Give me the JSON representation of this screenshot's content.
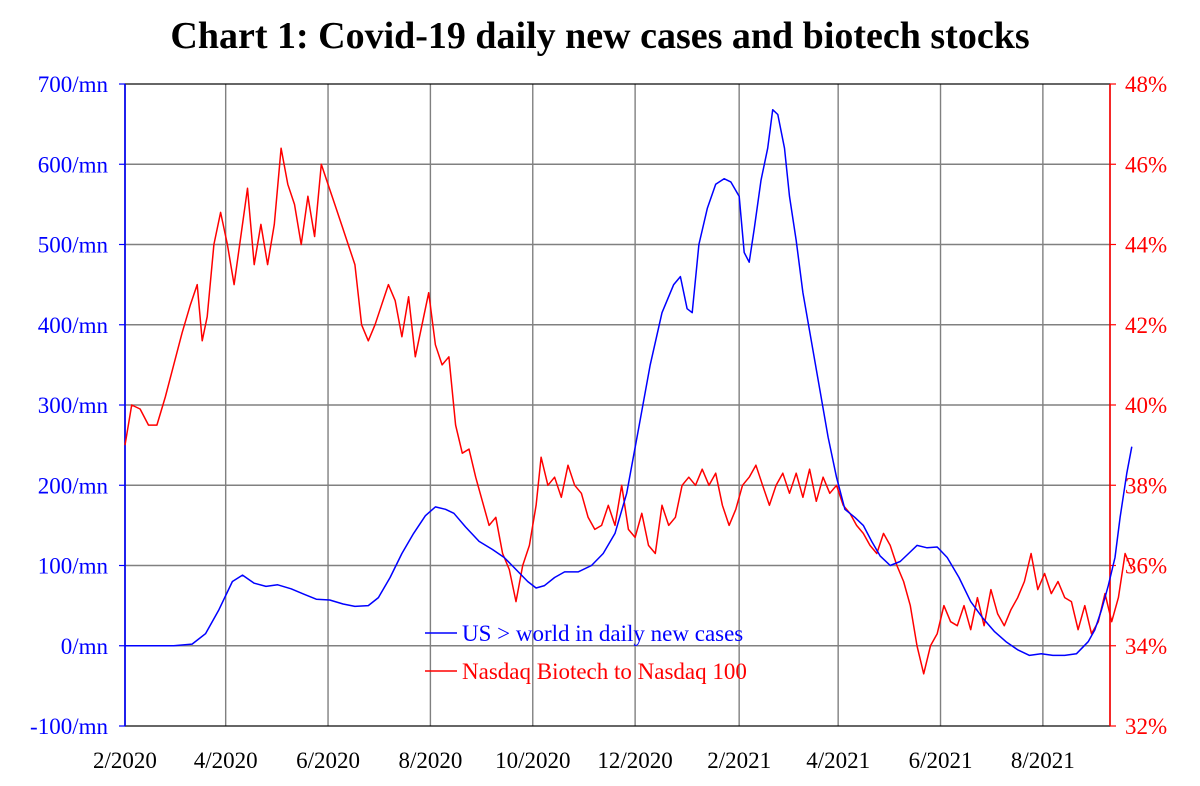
{
  "chart_data": {
    "type": "line",
    "title": "Chart 1: Covid-19 daily new cases and biotech stocks",
    "x_ticks": [
      "2/2020",
      "4/2020",
      "6/2020",
      "8/2020",
      "10/2020",
      "12/2020",
      "2/2021",
      "4/2021",
      "6/2021",
      "8/2021"
    ],
    "x_range": [
      "2020-02-01",
      "2021-09-10"
    ],
    "y_left": {
      "ticks": [
        "-100/mn",
        "0/mn",
        "100/mn",
        "200/mn",
        "300/mn",
        "400/mn",
        "500/mn",
        "600/mn",
        "700/mn"
      ],
      "ylim": [
        -100,
        700
      ],
      "color": "#0000ff"
    },
    "y_right": {
      "ticks": [
        "32%",
        "34%",
        "36%",
        "38%",
        "40%",
        "42%",
        "44%",
        "46%",
        "48%"
      ],
      "ylim": [
        32,
        48
      ],
      "color": "#ff0000"
    },
    "grid": true,
    "legend_position": "bottom-center",
    "series": [
      {
        "name": "US > world in daily new cases",
        "axis": "left",
        "color": "#0000ff",
        "points": [
          [
            "2020-02-01",
            0
          ],
          [
            "2020-03-01",
            0
          ],
          [
            "2020-03-12",
            2
          ],
          [
            "2020-03-20",
            15
          ],
          [
            "2020-03-28",
            45
          ],
          [
            "2020-04-05",
            80
          ],
          [
            "2020-04-11",
            88
          ],
          [
            "2020-04-18",
            78
          ],
          [
            "2020-04-25",
            74
          ],
          [
            "2020-05-02",
            76
          ],
          [
            "2020-05-10",
            71
          ],
          [
            "2020-05-18",
            64
          ],
          [
            "2020-05-25",
            58
          ],
          [
            "2020-06-02",
            57
          ],
          [
            "2020-06-10",
            52
          ],
          [
            "2020-06-17",
            49
          ],
          [
            "2020-06-25",
            50
          ],
          [
            "2020-07-01",
            60
          ],
          [
            "2020-07-08",
            85
          ],
          [
            "2020-07-15",
            115
          ],
          [
            "2020-07-22",
            140
          ],
          [
            "2020-07-29",
            162
          ],
          [
            "2020-08-04",
            173
          ],
          [
            "2020-08-10",
            170
          ],
          [
            "2020-08-15",
            165
          ],
          [
            "2020-08-22",
            148
          ],
          [
            "2020-08-30",
            130
          ],
          [
            "2020-09-07",
            120
          ],
          [
            "2020-09-14",
            110
          ],
          [
            "2020-09-21",
            95
          ],
          [
            "2020-09-28",
            80
          ],
          [
            "2020-10-03",
            72
          ],
          [
            "2020-10-08",
            75
          ],
          [
            "2020-10-14",
            85
          ],
          [
            "2020-10-20",
            92
          ],
          [
            "2020-10-28",
            92
          ],
          [
            "2020-11-05",
            100
          ],
          [
            "2020-11-12",
            115
          ],
          [
            "2020-11-19",
            140
          ],
          [
            "2020-11-26",
            190
          ],
          [
            "2020-12-03",
            270
          ],
          [
            "2020-12-10",
            350
          ],
          [
            "2020-12-17",
            415
          ],
          [
            "2020-12-24",
            450
          ],
          [
            "2020-12-28",
            460
          ],
          [
            "2021-01-01",
            420
          ],
          [
            "2021-01-04",
            415
          ],
          [
            "2021-01-08",
            500
          ],
          [
            "2021-01-13",
            545
          ],
          [
            "2021-01-18",
            575
          ],
          [
            "2021-01-23",
            582
          ],
          [
            "2021-01-27",
            578
          ],
          [
            "2021-02-01",
            560
          ],
          [
            "2021-02-04",
            490
          ],
          [
            "2021-02-07",
            478
          ],
          [
            "2021-02-10",
            520
          ],
          [
            "2021-02-14",
            580
          ],
          [
            "2021-02-18",
            620
          ],
          [
            "2021-02-21",
            668
          ],
          [
            "2021-02-24",
            662
          ],
          [
            "2021-02-28",
            620
          ],
          [
            "2021-03-03",
            560
          ],
          [
            "2021-03-07",
            505
          ],
          [
            "2021-03-11",
            440
          ],
          [
            "2021-03-16",
            380
          ],
          [
            "2021-03-21",
            320
          ],
          [
            "2021-03-26",
            260
          ],
          [
            "2021-03-31",
            210
          ],
          [
            "2021-04-05",
            170
          ],
          [
            "2021-04-11",
            160
          ],
          [
            "2021-04-16",
            150
          ],
          [
            "2021-04-21",
            130
          ],
          [
            "2021-04-26",
            112
          ],
          [
            "2021-05-02",
            100
          ],
          [
            "2021-05-08",
            105
          ],
          [
            "2021-05-13",
            115
          ],
          [
            "2021-05-18",
            125
          ],
          [
            "2021-05-24",
            122
          ],
          [
            "2021-05-30",
            123
          ],
          [
            "2021-06-05",
            110
          ],
          [
            "2021-06-12",
            85
          ],
          [
            "2021-06-19",
            55
          ],
          [
            "2021-06-26",
            35
          ],
          [
            "2021-07-03",
            18
          ],
          [
            "2021-07-10",
            5
          ],
          [
            "2021-07-17",
            -5
          ],
          [
            "2021-07-24",
            -12
          ],
          [
            "2021-07-31",
            -10
          ],
          [
            "2021-08-07",
            -12
          ],
          [
            "2021-08-14",
            -12
          ],
          [
            "2021-08-21",
            -10
          ],
          [
            "2021-08-28",
            5
          ],
          [
            "2021-09-01",
            20
          ],
          [
            "2021-09-05",
            45
          ],
          [
            "2021-09-09",
            75
          ],
          [
            "2021-09-13",
            110
          ],
          [
            "2021-09-16",
            160
          ],
          [
            "2021-09-20",
            215
          ],
          [
            "2021-09-23",
            248
          ]
        ]
      },
      {
        "name": "Nasdaq Biotech to Nasdaq 100",
        "axis": "right",
        "color": "#ff0000",
        "points": [
          [
            "2020-02-01",
            39.0
          ],
          [
            "2020-02-05",
            40.0
          ],
          [
            "2020-02-10",
            39.9
          ],
          [
            "2020-02-15",
            39.5
          ],
          [
            "2020-02-20",
            39.5
          ],
          [
            "2020-02-25",
            40.2
          ],
          [
            "2020-03-01",
            41.0
          ],
          [
            "2020-03-06",
            41.8
          ],
          [
            "2020-03-11",
            42.5
          ],
          [
            "2020-03-15",
            43.0
          ],
          [
            "2020-03-18",
            41.6
          ],
          [
            "2020-03-21",
            42.2
          ],
          [
            "2020-03-25",
            44.0
          ],
          [
            "2020-03-29",
            44.8
          ],
          [
            "2020-04-02",
            44.0
          ],
          [
            "2020-04-06",
            43.0
          ],
          [
            "2020-04-10",
            44.2
          ],
          [
            "2020-04-14",
            45.4
          ],
          [
            "2020-04-18",
            43.5
          ],
          [
            "2020-04-22",
            44.5
          ],
          [
            "2020-04-26",
            43.5
          ],
          [
            "2020-04-30",
            44.5
          ],
          [
            "2020-05-04",
            46.4
          ],
          [
            "2020-05-08",
            45.5
          ],
          [
            "2020-05-12",
            45.0
          ],
          [
            "2020-05-16",
            44.0
          ],
          [
            "2020-05-20",
            45.2
          ],
          [
            "2020-05-24",
            44.2
          ],
          [
            "2020-05-28",
            46.0
          ],
          [
            "2020-06-01",
            45.5
          ],
          [
            "2020-06-05",
            45.0
          ],
          [
            "2020-06-09",
            44.5
          ],
          [
            "2020-06-13",
            44.0
          ],
          [
            "2020-06-17",
            43.5
          ],
          [
            "2020-06-21",
            42.0
          ],
          [
            "2020-06-25",
            41.6
          ],
          [
            "2020-06-29",
            42.0
          ],
          [
            "2020-07-03",
            42.5
          ],
          [
            "2020-07-07",
            43.0
          ],
          [
            "2020-07-11",
            42.6
          ],
          [
            "2020-07-15",
            41.7
          ],
          [
            "2020-07-19",
            42.7
          ],
          [
            "2020-07-23",
            41.2
          ],
          [
            "2020-07-27",
            42.0
          ],
          [
            "2020-07-31",
            42.8
          ],
          [
            "2020-08-04",
            41.5
          ],
          [
            "2020-08-08",
            41.0
          ],
          [
            "2020-08-12",
            41.2
          ],
          [
            "2020-08-16",
            39.5
          ],
          [
            "2020-08-20",
            38.8
          ],
          [
            "2020-08-24",
            38.9
          ],
          [
            "2020-08-28",
            38.2
          ],
          [
            "2020-09-01",
            37.6
          ],
          [
            "2020-09-05",
            37.0
          ],
          [
            "2020-09-09",
            37.2
          ],
          [
            "2020-09-13",
            36.3
          ],
          [
            "2020-09-17",
            35.9
          ],
          [
            "2020-09-21",
            35.1
          ],
          [
            "2020-09-25",
            36.0
          ],
          [
            "2020-09-29",
            36.5
          ],
          [
            "2020-10-03",
            37.5
          ],
          [
            "2020-10-06",
            38.7
          ],
          [
            "2020-10-10",
            38.0
          ],
          [
            "2020-10-14",
            38.2
          ],
          [
            "2020-10-18",
            37.7
          ],
          [
            "2020-10-22",
            38.5
          ],
          [
            "2020-10-26",
            38.0
          ],
          [
            "2020-10-30",
            37.8
          ],
          [
            "2020-11-03",
            37.2
          ],
          [
            "2020-11-07",
            36.9
          ],
          [
            "2020-11-11",
            37.0
          ],
          [
            "2020-11-15",
            37.5
          ],
          [
            "2020-11-19",
            37.0
          ],
          [
            "2020-11-23",
            38.0
          ],
          [
            "2020-11-27",
            36.9
          ],
          [
            "2020-12-01",
            36.7
          ],
          [
            "2020-12-05",
            37.3
          ],
          [
            "2020-12-09",
            36.5
          ],
          [
            "2020-12-13",
            36.3
          ],
          [
            "2020-12-17",
            37.5
          ],
          [
            "2020-12-21",
            37.0
          ],
          [
            "2020-12-25",
            37.2
          ],
          [
            "2020-12-29",
            38.0
          ],
          [
            "2021-01-02",
            38.2
          ],
          [
            "2021-01-06",
            38.0
          ],
          [
            "2021-01-10",
            38.4
          ],
          [
            "2021-01-14",
            38.0
          ],
          [
            "2021-01-18",
            38.3
          ],
          [
            "2021-01-22",
            37.5
          ],
          [
            "2021-01-26",
            37.0
          ],
          [
            "2021-01-30",
            37.4
          ],
          [
            "2021-02-03",
            38.0
          ],
          [
            "2021-02-07",
            38.2
          ],
          [
            "2021-02-11",
            38.5
          ],
          [
            "2021-02-15",
            38.0
          ],
          [
            "2021-02-19",
            37.5
          ],
          [
            "2021-02-23",
            38.0
          ],
          [
            "2021-02-27",
            38.3
          ],
          [
            "2021-03-03",
            37.8
          ],
          [
            "2021-03-07",
            38.3
          ],
          [
            "2021-03-11",
            37.7
          ],
          [
            "2021-03-15",
            38.4
          ],
          [
            "2021-03-19",
            37.6
          ],
          [
            "2021-03-23",
            38.2
          ],
          [
            "2021-03-27",
            37.8
          ],
          [
            "2021-03-31",
            38.0
          ],
          [
            "2021-04-04",
            37.5
          ],
          [
            "2021-04-08",
            37.3
          ],
          [
            "2021-04-12",
            37.0
          ],
          [
            "2021-04-16",
            36.8
          ],
          [
            "2021-04-20",
            36.5
          ],
          [
            "2021-04-24",
            36.3
          ],
          [
            "2021-04-28",
            36.8
          ],
          [
            "2021-05-02",
            36.5
          ],
          [
            "2021-05-06",
            36.0
          ],
          [
            "2021-05-10",
            35.6
          ],
          [
            "2021-05-14",
            35.0
          ],
          [
            "2021-05-18",
            34.0
          ],
          [
            "2021-05-22",
            33.3
          ],
          [
            "2021-05-26",
            34.0
          ],
          [
            "2021-05-30",
            34.3
          ],
          [
            "2021-06-03",
            35.0
          ],
          [
            "2021-06-07",
            34.6
          ],
          [
            "2021-06-11",
            34.5
          ],
          [
            "2021-06-15",
            35.0
          ],
          [
            "2021-06-19",
            34.4
          ],
          [
            "2021-06-23",
            35.2
          ],
          [
            "2021-06-27",
            34.5
          ],
          [
            "2021-07-01",
            35.4
          ],
          [
            "2021-07-05",
            34.8
          ],
          [
            "2021-07-09",
            34.5
          ],
          [
            "2021-07-13",
            34.9
          ],
          [
            "2021-07-17",
            35.2
          ],
          [
            "2021-07-21",
            35.6
          ],
          [
            "2021-07-25",
            36.3
          ],
          [
            "2021-07-29",
            35.4
          ],
          [
            "2021-08-02",
            35.8
          ],
          [
            "2021-08-06",
            35.3
          ],
          [
            "2021-08-10",
            35.6
          ],
          [
            "2021-08-14",
            35.2
          ],
          [
            "2021-08-18",
            35.1
          ],
          [
            "2021-08-22",
            34.4
          ],
          [
            "2021-08-26",
            35.0
          ],
          [
            "2021-08-30",
            34.3
          ],
          [
            "2021-09-03",
            34.6
          ],
          [
            "2021-09-07",
            35.3
          ],
          [
            "2021-09-11",
            34.6
          ],
          [
            "2021-09-15",
            35.2
          ],
          [
            "2021-09-19",
            36.3
          ],
          [
            "2021-09-23",
            35.9
          ]
        ]
      }
    ]
  }
}
